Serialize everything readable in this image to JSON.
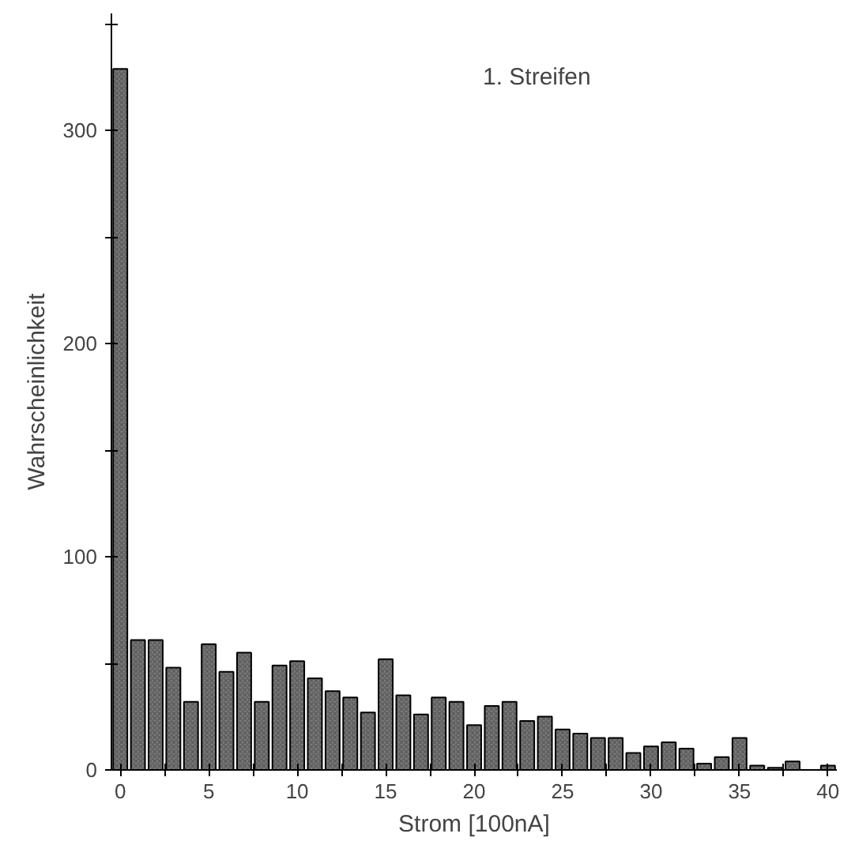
{
  "chart_data": {
    "type": "bar",
    "xlabel": "Strom [100nA]",
    "ylabel": "Wahrscheinlichkeit",
    "annotations": [
      "1. Streifen"
    ],
    "x": [
      0,
      1,
      2,
      3,
      4,
      5,
      6,
      7,
      8,
      9,
      10,
      11,
      12,
      13,
      14,
      15,
      16,
      17,
      18,
      19,
      20,
      21,
      22,
      23,
      24,
      25,
      26,
      27,
      28,
      29,
      30,
      31,
      32,
      33,
      34,
      35,
      36,
      37,
      38,
      39,
      40
    ],
    "values": [
      329,
      61,
      61,
      48,
      32,
      59,
      46,
      55,
      32,
      49,
      51,
      43,
      37,
      34,
      27,
      52,
      35,
      26,
      34,
      32,
      21,
      30,
      32,
      23,
      25,
      19,
      17,
      15,
      15,
      8,
      11,
      13,
      10,
      3,
      6,
      15,
      2,
      1,
      4,
      null,
      2
    ],
    "color": "#7a7a7a",
    "xlim": [
      -0.5,
      40.5
    ],
    "ylim": [
      0,
      355
    ],
    "xticks": [
      0,
      {
        "value": 2.5,
        "label": null
      },
      5,
      {
        "value": 7.5,
        "label": null
      },
      10,
      {
        "value": 12.5,
        "label": null
      },
      15,
      {
        "value": 17.5,
        "label": null
      },
      20,
      {
        "value": 22.5,
        "label": null
      },
      25,
      {
        "value": 27.5,
        "label": null
      },
      30,
      {
        "value": 32.5,
        "label": null
      },
      35,
      {
        "value": 37.5,
        "label": null
      },
      40
    ],
    "yticks": [
      0,
      {
        "value": 50,
        "label": null
      },
      100,
      {
        "value": 150,
        "label": null
      },
      200,
      {
        "value": 250,
        "label": null
      },
      300,
      {
        "value": 350,
        "label": null
      }
    ],
    "grid": false
  }
}
